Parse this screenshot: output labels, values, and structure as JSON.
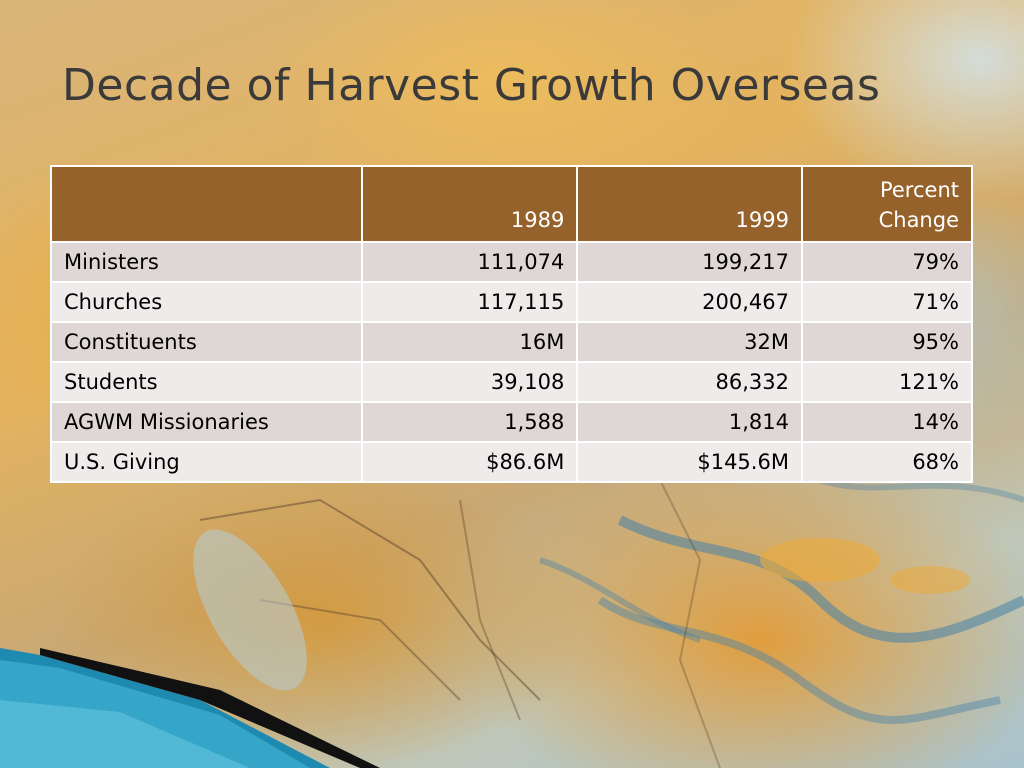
{
  "slide": {
    "title": "Decade of Harvest Growth Overseas"
  },
  "table": {
    "headers": [
      "",
      "1989",
      "1999",
      "Percent Change"
    ],
    "rows": [
      {
        "label": "Ministers",
        "y1989": "111,074",
        "y1999": "199,217",
        "pct": "79%"
      },
      {
        "label": "Churches",
        "y1989": "117,115",
        "y1999": "200,467",
        "pct": "71%"
      },
      {
        "label": "Constituents",
        "y1989": "16M",
        "y1999": "32M",
        "pct": "95%"
      },
      {
        "label": "Students",
        "y1989": "39,108",
        "y1999": "86,332",
        "pct": "121%"
      },
      {
        "label": "AGWM Missionaries",
        "y1989": "1,588",
        "y1999": "1,814",
        "pct": "14%"
      },
      {
        "label": "U.S. Giving",
        "y1989": "$86.6M",
        "y1999": "$145.6M",
        "pct": "68%"
      }
    ]
  },
  "colors": {
    "header_fill": "#96622c",
    "row_odd": "#dfd7d6",
    "row_even": "#efebea",
    "title_text": "#3a3a3a",
    "accent_blue": "#2a8fb5"
  }
}
